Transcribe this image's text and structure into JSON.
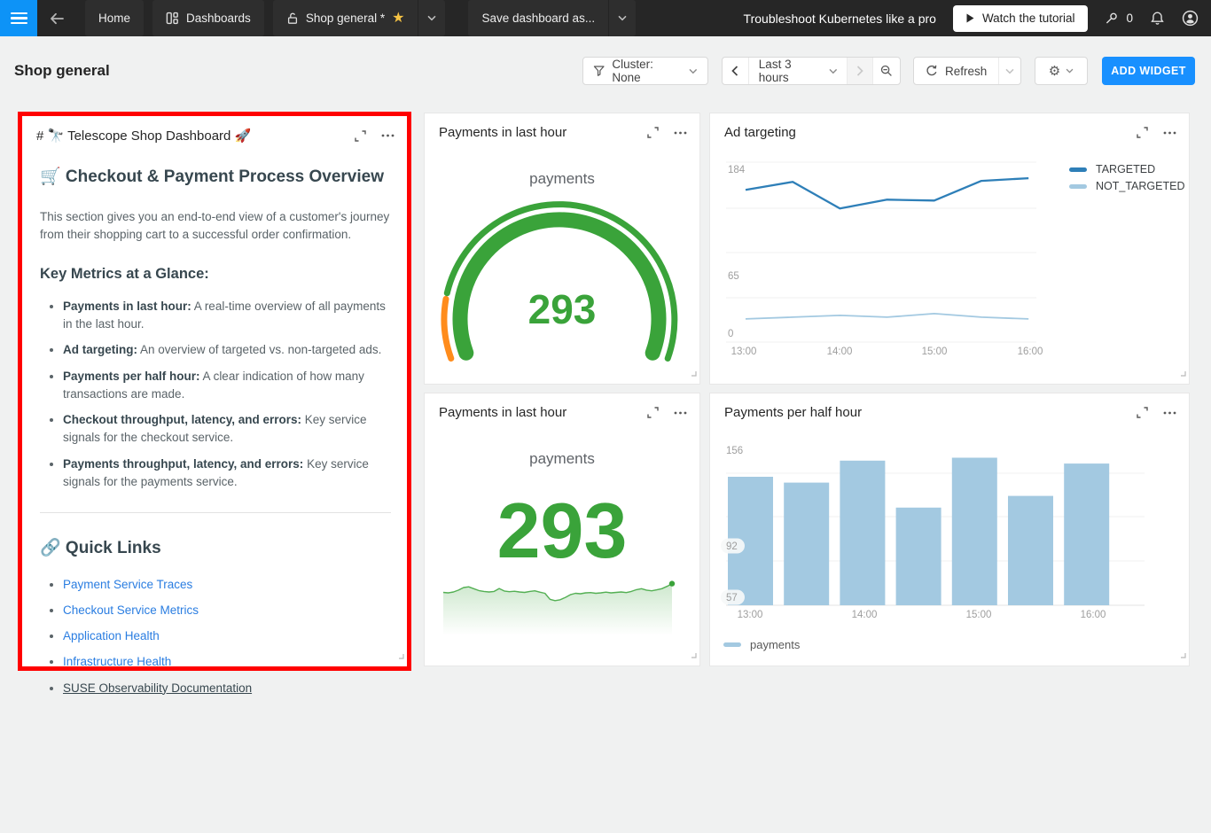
{
  "topbar": {
    "home_tab": "Home",
    "dashboards_tab": "Dashboards",
    "dashboard_tab": "Shop general *",
    "save_button": "Save dashboard as...",
    "promo_text": "Troubleshoot Kubernetes like a pro",
    "tutorial_button": "Watch the tutorial",
    "pin_count": "0"
  },
  "header": {
    "title": "Shop general",
    "cluster_button": "Cluster: None",
    "time_range": "Last 3 hours",
    "refresh_button": "Refresh",
    "add_widget_button": "ADD WIDGET"
  },
  "markdown_widget": {
    "title": "# 🔭 Telescope Shop Dashboard 🚀",
    "heading": "🛒 Checkout & Payment Process Overview",
    "intro": "This section gives you an end-to-end view of a customer's journey from their shopping cart to a successful order confirmation.",
    "metrics_heading": "Key Metrics at a Glance:",
    "metrics": [
      {
        "label": "Payments in last hour:",
        "text": "A real-time overview of all payments in the last hour."
      },
      {
        "label": "Ad targeting:",
        "text": "An overview of targeted vs. non-targeted ads."
      },
      {
        "label": "Payments per half hour:",
        "text": "A clear indication of how many transactions are made."
      },
      {
        "label": "Checkout throughput, latency, and errors:",
        "text": "Key service signals for the checkout service."
      },
      {
        "label": "Payments throughput, latency, and errors:",
        "text": "Key service signals for the payments service."
      }
    ],
    "links_heading": "🔗 Quick Links",
    "links": [
      {
        "label": "Payment Service Traces",
        "variant": "primary"
      },
      {
        "label": "Checkout Service Metrics",
        "variant": "primary"
      },
      {
        "label": "Application Health",
        "variant": "primary"
      },
      {
        "label": "Infrastructure Health",
        "variant": "primary"
      },
      {
        "label": "SUSE Observability Documentation",
        "variant": "plain"
      }
    ]
  },
  "widgets": {
    "gauge": {
      "title": "Payments in last hour"
    },
    "ad_targeting": {
      "title": "Ad targeting"
    },
    "number": {
      "title": "Payments in last hour"
    },
    "payments_per_half_hour": {
      "title": "Payments per half hour"
    }
  },
  "colors": {
    "green": "#3aa33a",
    "orange": "#ff8c1c",
    "light_blue": "#a3c9e1",
    "dark_blue": "#2e7fb8",
    "accent_blue": "#1890ff",
    "link_blue": "#2a7de1",
    "highlight_red": "#ff0000"
  },
  "chart_data": [
    {
      "id": "ad_targeting",
      "type": "line",
      "title": "Ad targeting",
      "x": [
        "13:00",
        "13:30",
        "14:00",
        "14:30",
        "15:00",
        "15:30",
        "16:00"
      ],
      "xtick_labels": [
        "13:00",
        "14:00",
        "15:00",
        "16:00"
      ],
      "series": [
        {
          "name": "NOT_TARGETED",
          "color": "#a3c9e1",
          "values": [
            16,
            18,
            20,
            18,
            22,
            18,
            16
          ]
        },
        {
          "name": "TARGETED",
          "color": "#2e7fb8",
          "values": [
            161,
            170,
            140,
            150,
            149,
            171,
            174
          ]
        }
      ],
      "yticks": [
        184,
        65,
        0
      ],
      "ylim": [
        0,
        195
      ],
      "grid": true,
      "legend_position": "right"
    },
    {
      "id": "payments_per_half_hour",
      "type": "bar",
      "title": "Payments per half hour",
      "categories": [
        "13:00",
        "13:30",
        "14:00",
        "14:30",
        "15:00",
        "15:30",
        "16:00"
      ],
      "xtick_labels": [
        "13:00",
        "14:00",
        "15:00",
        "16:00"
      ],
      "series_name": "payments",
      "values": [
        139,
        135,
        150,
        118,
        152,
        126,
        148
      ],
      "yticks": [
        156,
        92,
        57
      ],
      "ylim": [
        52,
        156
      ],
      "color": "#a3c9e1",
      "legend_position": "bottom"
    },
    {
      "id": "payments_gauge",
      "type": "gauge",
      "title": "Payments in last hour",
      "metric": "payments",
      "value": 293,
      "arc_colors": [
        "#ff8c1c",
        "#3aa33a"
      ]
    },
    {
      "id": "payments_trend",
      "type": "area",
      "title": "Payments in last hour",
      "metric": "payments",
      "value": 293,
      "color": "#3aa33a",
      "values": [
        93.2,
        93.0,
        93.4,
        94.2,
        95.3,
        95.6,
        94.8,
        94.0,
        93.6,
        93.4,
        93.6,
        94.9,
        93.8,
        93.5,
        93.7,
        93.4,
        93.2,
        93.6,
        93.9,
        93.3,
        92.8,
        90.2,
        89.6,
        90.0,
        91.0,
        92.2,
        92.8,
        92.6,
        93.0,
        93.1,
        92.8,
        93.0,
        93.3,
        93.0,
        93.2,
        93.4,
        93.1,
        93.6,
        94.4,
        94.8,
        94.2,
        93.9,
        94.3,
        94.8,
        95.8,
        97.0
      ]
    }
  ]
}
